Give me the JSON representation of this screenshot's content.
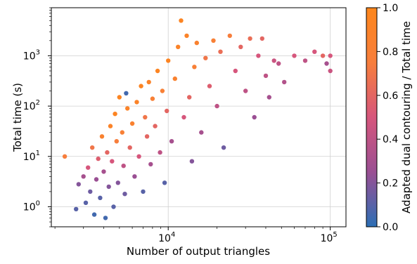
{
  "chart_data": {
    "type": "scatter",
    "title": "",
    "xlabel": "Number of output triangles",
    "ylabel": "Total time (s)",
    "xscale": "log",
    "yscale": "log",
    "xlim": [
      1900,
      125000
    ],
    "ylim": [
      0.4,
      9000
    ],
    "grid": true,
    "x_ticks": [
      {
        "value": 10000,
        "base": "10",
        "exponent": "4"
      },
      {
        "value": 100000,
        "base": "10",
        "exponent": "5"
      }
    ],
    "y_ticks": [
      {
        "value": 1,
        "base": "10",
        "exponent": "0"
      },
      {
        "value": 10,
        "base": "10",
        "exponent": "1"
      },
      {
        "value": 100,
        "base": "10",
        "exponent": "2"
      },
      {
        "value": 1000,
        "base": "10",
        "exponent": "3"
      }
    ],
    "colorbar": {
      "label": "Adapted dual contouring / Total time",
      "range": [
        0.0,
        1.0
      ],
      "ticks": [
        "0.0",
        "0.2",
        "0.4",
        "0.6",
        "0.8",
        "1.0"
      ],
      "colormap": [
        "#2c6fb5",
        "#9a4f93",
        "#d6567c",
        "#f77e3c",
        "#fd861c"
      ]
    },
    "points": [
      [
        2300,
        10,
        0.75
      ],
      [
        2700,
        0.9,
        0.1
      ],
      [
        2800,
        2.8,
        0.2
      ],
      [
        3000,
        4.0,
        0.3
      ],
      [
        3100,
        1.2,
        0.1
      ],
      [
        3200,
        6.0,
        0.5
      ],
      [
        3300,
        2.0,
        0.15
      ],
      [
        3400,
        15,
        0.7
      ],
      [
        3500,
        0.7,
        0.05
      ],
      [
        3600,
        3.5,
        0.25
      ],
      [
        3700,
        9.0,
        0.55
      ],
      [
        3800,
        1.5,
        0.1
      ],
      [
        3900,
        25,
        0.85
      ],
      [
        4000,
        5.0,
        0.3
      ],
      [
        4100,
        0.6,
        0.05
      ],
      [
        4200,
        12,
        0.6
      ],
      [
        4300,
        2.5,
        0.2
      ],
      [
        4400,
        40,
        0.9
      ],
      [
        4500,
        8.0,
        0.5
      ],
      [
        4600,
        1.0,
        0.1
      ],
      [
        4700,
        70,
        0.95
      ],
      [
        4800,
        20,
        0.75
      ],
      [
        4900,
        3.0,
        0.2
      ],
      [
        5000,
        150,
        0.95
      ],
      [
        5200,
        30,
        0.8
      ],
      [
        5300,
        6.5,
        0.4
      ],
      [
        5400,
        1.8,
        0.15
      ],
      [
        5500,
        180,
        0.05
      ],
      [
        5600,
        90,
        0.9
      ],
      [
        5800,
        15,
        0.6
      ],
      [
        6000,
        45,
        0.85
      ],
      [
        6200,
        4.0,
        0.25
      ],
      [
        6400,
        120,
        0.9
      ],
      [
        6600,
        10,
        0.5
      ],
      [
        6800,
        250,
        0.95
      ],
      [
        7000,
        2.0,
        0.1
      ],
      [
        7200,
        60,
        0.7
      ],
      [
        7400,
        25,
        0.6
      ],
      [
        7600,
        300,
        0.9
      ],
      [
        7800,
        7.0,
        0.3
      ],
      [
        8000,
        140,
        0.8
      ],
      [
        8300,
        40,
        0.6
      ],
      [
        8600,
        500,
        0.95
      ],
      [
        8900,
        12,
        0.4
      ],
      [
        9200,
        200,
        0.8
      ],
      [
        9500,
        3.0,
        0.1
      ],
      [
        9800,
        80,
        0.6
      ],
      [
        10000,
        800,
        0.95
      ],
      [
        10500,
        20,
        0.3
      ],
      [
        11000,
        350,
        0.85
      ],
      [
        11500,
        1500,
        0.9
      ],
      [
        12000,
        5000,
        0.95
      ],
      [
        12500,
        60,
        0.5
      ],
      [
        13000,
        2500,
        0.9
      ],
      [
        13500,
        150,
        0.6
      ],
      [
        14000,
        8.0,
        0.2
      ],
      [
        14500,
        600,
        0.8
      ],
      [
        15000,
        1800,
        0.85
      ],
      [
        16000,
        30,
        0.3
      ],
      [
        17000,
        900,
        0.7
      ],
      [
        18000,
        250,
        0.55
      ],
      [
        19000,
        2000,
        0.8
      ],
      [
        20000,
        100,
        0.4
      ],
      [
        21000,
        1200,
        0.65
      ],
      [
        22000,
        15,
        0.15
      ],
      [
        24000,
        2500,
        0.75
      ],
      [
        26000,
        500,
        0.5
      ],
      [
        28000,
        1500,
        0.6
      ],
      [
        30000,
        200,
        0.4
      ],
      [
        32000,
        2200,
        0.65
      ],
      [
        34000,
        60,
        0.25
      ],
      [
        36000,
        1000,
        0.5
      ],
      [
        38000,
        2200,
        0.6
      ],
      [
        40000,
        400,
        0.4
      ],
      [
        42000,
        150,
        0.3
      ],
      [
        45000,
        800,
        0.45
      ],
      [
        48000,
        700,
        0.4
      ],
      [
        52000,
        300,
        0.35
      ],
      [
        60000,
        1000,
        0.5
      ],
      [
        70000,
        800,
        0.4
      ],
      [
        80000,
        1200,
        0.5
      ],
      [
        90000,
        1000,
        0.6
      ],
      [
        95000,
        700,
        0.3
      ],
      [
        100000,
        1000,
        0.5
      ],
      [
        100000,
        500,
        0.45
      ]
    ]
  }
}
